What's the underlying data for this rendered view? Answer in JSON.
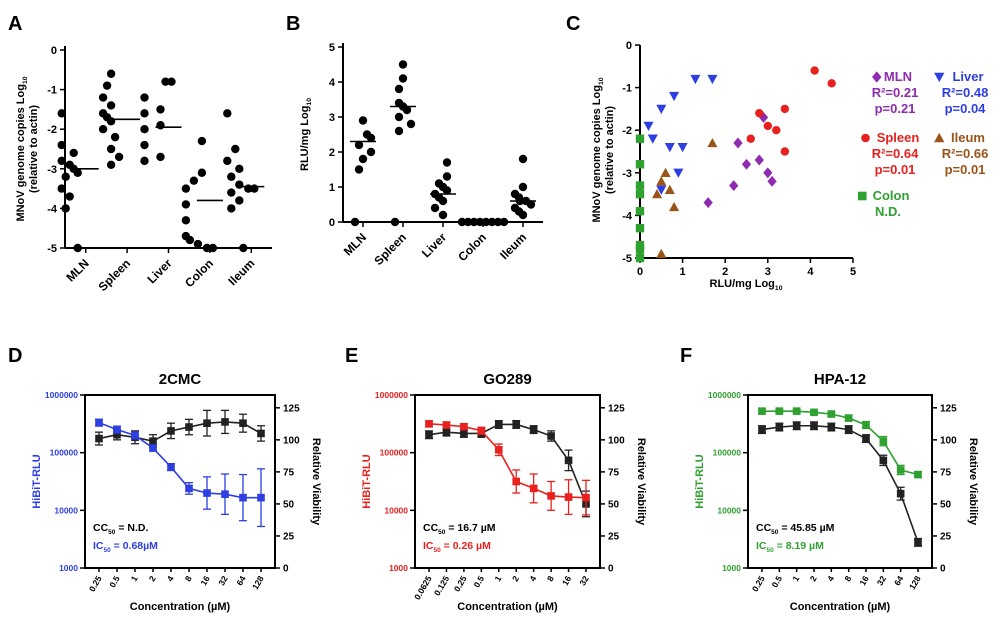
{
  "chart_data": [
    {
      "id": "A",
      "panel_letter": "A",
      "type": "scatter",
      "ylabel_main": "MNoV genome copies Log",
      "ylabel_sub": "10",
      "ylabel_2": "(relative to actin)",
      "ylim": [
        -5,
        0
      ],
      "yticks": [
        "0",
        "-1",
        "-2",
        "-3",
        "-4",
        "-5"
      ],
      "dashed_line": -5,
      "categories": [
        "MLN",
        "Spleen",
        "Liver",
        "Colon",
        "Ileum"
      ],
      "points": [
        [
          -1.6,
          -2.4,
          -2.6,
          -2.8,
          -2.9,
          -3.0,
          -3.1,
          -3.2,
          -3.5,
          -3.7,
          -4.0,
          -5.0
        ],
        [
          -0.6,
          -0.9,
          -1.2,
          -1.4,
          -1.6,
          -1.7,
          -1.8,
          -2.0,
          -2.2,
          -2.5,
          -2.7,
          -2.9
        ],
        [
          -0.8,
          -0.8,
          -1.2,
          -1.5,
          -1.6,
          -1.9,
          -2.0,
          -2.4,
          -2.7,
          -2.8
        ],
        [
          -2.3,
          -3.1,
          -3.3,
          -3.5,
          -3.9,
          -4.3,
          -4.7,
          -4.8,
          -4.9,
          -5.0,
          -5.0
        ],
        [
          -1.6,
          -2.5,
          -2.8,
          -3.0,
          -3.2,
          -3.4,
          -3.5,
          -3.5,
          -3.6,
          -3.8,
          -4.0,
          -5.0
        ]
      ],
      "medians": [
        -3.0,
        -1.75,
        -1.95,
        -3.8,
        -3.45
      ]
    },
    {
      "id": "B",
      "panel_letter": "B",
      "type": "scatter",
      "ylabel_main": "RLU/mg Log",
      "ylabel_sub": "10",
      "ylim": [
        0,
        5
      ],
      "yticks": [
        "5",
        "4",
        "3",
        "2",
        "1",
        "0"
      ],
      "dashed_line": 0,
      "categories": [
        "MLN",
        "Spleen",
        "Liver",
        "Colon",
        "Ileum"
      ],
      "points": [
        [
          2.9,
          2.5,
          2.4,
          2.2,
          2.0,
          1.8,
          1.5,
          0.0
        ],
        [
          4.5,
          4.1,
          3.8,
          3.4,
          3.3,
          3.2,
          3.0,
          2.8,
          2.6,
          0.0
        ],
        [
          1.7,
          1.3,
          1.1,
          1.0,
          0.9,
          0.8,
          0.7,
          0.6,
          0.4,
          0.2
        ],
        [
          0.0,
          0.0,
          0.0,
          0.0,
          0.0,
          0.0,
          0.0,
          0.0
        ],
        [
          1.8,
          1.0,
          0.8,
          0.7,
          0.6,
          0.6,
          0.5,
          0.4,
          0.3,
          0.2
        ]
      ],
      "medians": [
        2.3,
        3.3,
        0.8,
        0.0,
        0.6
      ]
    },
    {
      "id": "C",
      "panel_letter": "C",
      "type": "scatter",
      "xlabel_main": "RLU/mg Log",
      "xlabel_sub": "10",
      "ylabel_main": "MNoV genome copies Log",
      "ylabel_sub": "10",
      "ylabel_2": "(relative to actin)",
      "xlim": [
        0,
        5
      ],
      "ylim": [
        -5,
        0
      ],
      "xticks": [
        "0",
        "1",
        "2",
        "3",
        "4",
        "5"
      ],
      "yticks": [
        "0",
        "-1",
        "-2",
        "-3",
        "-4",
        "-5"
      ],
      "series": [
        {
          "name": "MLN",
          "color": "#8E2BB0",
          "marker": "diamond",
          "r2": "R²=0.21",
          "p": "p=0.21",
          "x": [
            2.9,
            2.3,
            2.5,
            2.8,
            3.0,
            3.1,
            1.6,
            2.2
          ],
          "y": [
            -1.7,
            -2.3,
            -2.8,
            -2.7,
            -3.0,
            -3.2,
            -3.7,
            -3.3
          ]
        },
        {
          "name": "Liver",
          "color": "#2D3FE0",
          "marker": "tri-down",
          "r2": "R²=0.48",
          "p": "p=0.04",
          "x": [
            0.2,
            0.5,
            0.8,
            1.3,
            1.7,
            0.3,
            0.7,
            1.0,
            0.9,
            0.5
          ],
          "y": [
            -1.9,
            -1.5,
            -1.2,
            -0.8,
            -0.8,
            -2.2,
            -2.4,
            -2.4,
            -3.0,
            -3.4
          ]
        },
        {
          "name": "Spleen",
          "color": "#E8201E",
          "marker": "circle",
          "r2": "R²=0.64",
          "p": "p=0.01",
          "x": [
            4.1,
            4.5,
            3.4,
            2.8,
            3.0,
            3.2,
            3.4,
            2.6
          ],
          "y": [
            -0.6,
            -0.9,
            -1.5,
            -1.6,
            -1.9,
            -2.0,
            -2.5,
            -2.2
          ]
        },
        {
          "name": "Ileum",
          "color": "#9A5418",
          "marker": "tri-up",
          "r2": "R²=0.66",
          "p": "p=0.01",
          "x": [
            0.6,
            0.5,
            0.4,
            0.7,
            1.7,
            0.8,
            0.5
          ],
          "y": [
            -3.0,
            -3.2,
            -3.5,
            -3.4,
            -2.3,
            -3.8,
            -4.9
          ]
        },
        {
          "name": "Colon",
          "color": "#2FA131",
          "marker": "square",
          "r2": "N.D.",
          "p": "",
          "x": [
            0,
            0,
            0,
            0,
            0,
            0,
            0,
            0,
            0
          ],
          "y": [
            -2.2,
            -2.8,
            -3.3,
            -3.5,
            -3.9,
            -4.3,
            -4.7,
            -4.8,
            -5.0
          ]
        }
      ]
    },
    {
      "id": "D",
      "panel_letter": "D",
      "type": "line",
      "title": "2CMC",
      "left_color": "#2D3FE0",
      "ylabel_left": "HiBiT-RLU",
      "ylabel_right": "Relative Viability",
      "xlabel": "Concentration (µM)",
      "x": [
        "0.25",
        "0.5",
        "1",
        "2",
        "4",
        "8",
        "16",
        "32",
        "64",
        "128"
      ],
      "left_yticks": [
        "1000000",
        "100000",
        "10000",
        "1000"
      ],
      "right_yticks": [
        "125",
        "100",
        "75",
        "50",
        "25",
        "0"
      ],
      "series_left": {
        "name": "HiBiT-RLU",
        "values": [
          5.52,
          5.4,
          5.3,
          5.08,
          4.75,
          4.38,
          4.3,
          4.28,
          4.22,
          4.22
        ],
        "err": [
          0.06,
          0.06,
          0.06,
          0.05,
          0.06,
          0.1,
          0.28,
          0.35,
          0.4,
          0.5
        ]
      },
      "series_right": {
        "name": "Relative Viability",
        "values": [
          101,
          104,
          102,
          99,
          107,
          110,
          113,
          114,
          113,
          105
        ],
        "err": [
          5,
          4,
          5,
          5,
          6,
          6,
          10,
          9,
          7,
          6
        ]
      },
      "note1_main": "CC",
      "note1_sub": "50",
      "note1_value": " = N.D.",
      "note2_main": "IC",
      "note2_sub": "50",
      "note2_value": " = 0.68µM"
    },
    {
      "id": "E",
      "panel_letter": "E",
      "type": "line",
      "title": "GO289",
      "left_color": "#E8201E",
      "ylabel_left": "HiBiT-RLU",
      "ylabel_right": "Relative Viability",
      "xlabel": "Concentration (µM)",
      "x": [
        "0.0625",
        "0.125",
        "0.25",
        "0.5",
        "1",
        "2",
        "4",
        "8",
        "16",
        "32"
      ],
      "left_yticks": [
        "1000000",
        "100000",
        "10000",
        "1000"
      ],
      "right_yticks": [
        "125",
        "100",
        "75",
        "50",
        "25",
        "0"
      ],
      "series_left": {
        "name": "HiBiT-RLU",
        "values": [
          5.5,
          5.48,
          5.45,
          5.38,
          5.05,
          4.5,
          4.38,
          4.25,
          4.23,
          4.22
        ],
        "err": [
          0.05,
          0.05,
          0.05,
          0.06,
          0.1,
          0.2,
          0.25,
          0.25,
          0.3,
          0.3
        ]
      },
      "series_right": {
        "name": "Relative Viability",
        "values": [
          104,
          106,
          105,
          105,
          112,
          112,
          108,
          103,
          84,
          50
        ],
        "err": [
          3,
          3,
          3,
          3,
          3,
          3,
          3,
          4,
          8,
          10
        ]
      },
      "note1_main": "CC",
      "note1_sub": "50",
      "note1_value": " = 16.7 µM",
      "note2_main": "IC",
      "note2_sub": "50",
      "note2_value": " = 0.26 µM"
    },
    {
      "id": "F",
      "panel_letter": "F",
      "type": "line",
      "title": "HPA-12",
      "left_color": "#2FA131",
      "ylabel_left": "HiBiT-RLU",
      "ylabel_right": "Relative Viability",
      "xlabel": "Concentration (µM)",
      "x": [
        "0.25",
        "0.5",
        "1",
        "2",
        "4",
        "8",
        "16",
        "32",
        "64",
        "128"
      ],
      "left_yticks": [
        "1000000",
        "100000",
        "10000",
        "1000"
      ],
      "right_yticks": [
        "125",
        "100",
        "75",
        "50",
        "25",
        "0"
      ],
      "series_left": {
        "name": "HiBiT-RLU",
        "values": [
          5.72,
          5.72,
          5.72,
          5.7,
          5.67,
          5.6,
          5.48,
          5.2,
          4.7,
          4.62
        ],
        "err": [
          0.03,
          0.03,
          0.03,
          0.03,
          0.04,
          0.05,
          0.06,
          0.08,
          0.08,
          0.05
        ]
      },
      "series_right": {
        "name": "Relative Viability",
        "values": [
          108,
          110,
          111,
          111,
          110,
          108,
          101,
          84,
          58,
          20
        ],
        "err": [
          3,
          3,
          3,
          3,
          3,
          3,
          3,
          4,
          5,
          3
        ]
      },
      "note1_main": "CC",
      "note1_sub": "50",
      "note1_value": " = 45.85 µM",
      "note2_main": "IC",
      "note2_sub": "50",
      "note2_value": " = 8.19 µM"
    }
  ]
}
